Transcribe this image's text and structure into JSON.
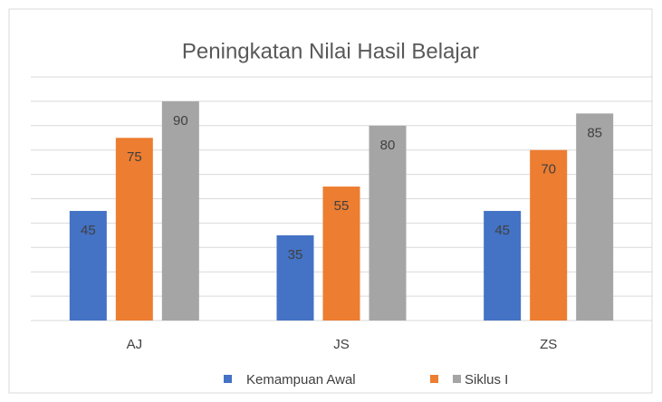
{
  "chart_data": {
    "type": "bar",
    "title": "Peningkatan Nilai Hasil Belajar",
    "categories": [
      "AJ",
      "JS",
      "ZS"
    ],
    "series": [
      {
        "name": "Kemampuan Awal",
        "color": "#4472c4",
        "values": [
          45,
          35,
          45
        ]
      },
      {
        "color": "#ed7d31",
        "values": [
          75,
          55,
          70
        ]
      },
      {
        "name": "Siklus I",
        "color": "#a5a5a5",
        "values": [
          90,
          80,
          85
        ]
      }
    ],
    "ylim": [
      0,
      100
    ],
    "yticks": [
      0,
      10,
      20,
      30,
      40,
      50,
      60,
      70,
      80,
      90,
      100
    ],
    "grid": true
  }
}
